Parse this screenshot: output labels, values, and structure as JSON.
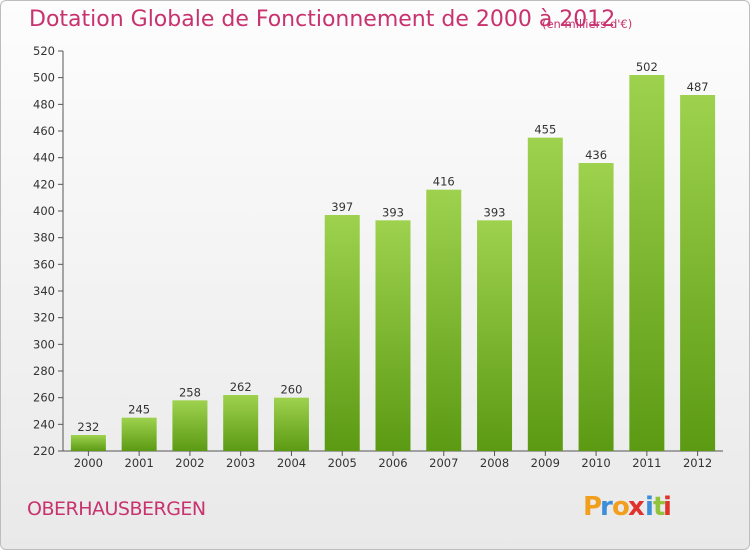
{
  "header": {
    "title": "Dotation Globale de Fonctionnement de 2000 à 2012",
    "unit": "(en milliers d'€)"
  },
  "footer": {
    "place": "OBERHAUSBERGEN",
    "brand": {
      "letters": [
        "P",
        "r",
        "o",
        "x",
        "i",
        "t",
        "i"
      ],
      "colors": [
        "#f0a01e",
        "#3c8ed8",
        "#f0a01e",
        "#e0322c",
        "#3c8ed8",
        "#8fc43c",
        "#e0322c"
      ]
    }
  },
  "chart_data": {
    "type": "bar",
    "categories": [
      "2000",
      "2001",
      "2002",
      "2003",
      "2004",
      "2005",
      "2006",
      "2007",
      "2008",
      "2009",
      "2010",
      "2011",
      "2012"
    ],
    "values": [
      232,
      245,
      258,
      262,
      260,
      397,
      393,
      416,
      393,
      455,
      436,
      502,
      487
    ],
    "ylim": [
      220,
      520
    ],
    "yticks": [
      220,
      240,
      260,
      280,
      300,
      320,
      340,
      360,
      380,
      400,
      420,
      440,
      460,
      480,
      500,
      520
    ],
    "grid": false,
    "bar_color_top": "#9ed24e",
    "bar_color_bottom": "#5c9a14"
  }
}
